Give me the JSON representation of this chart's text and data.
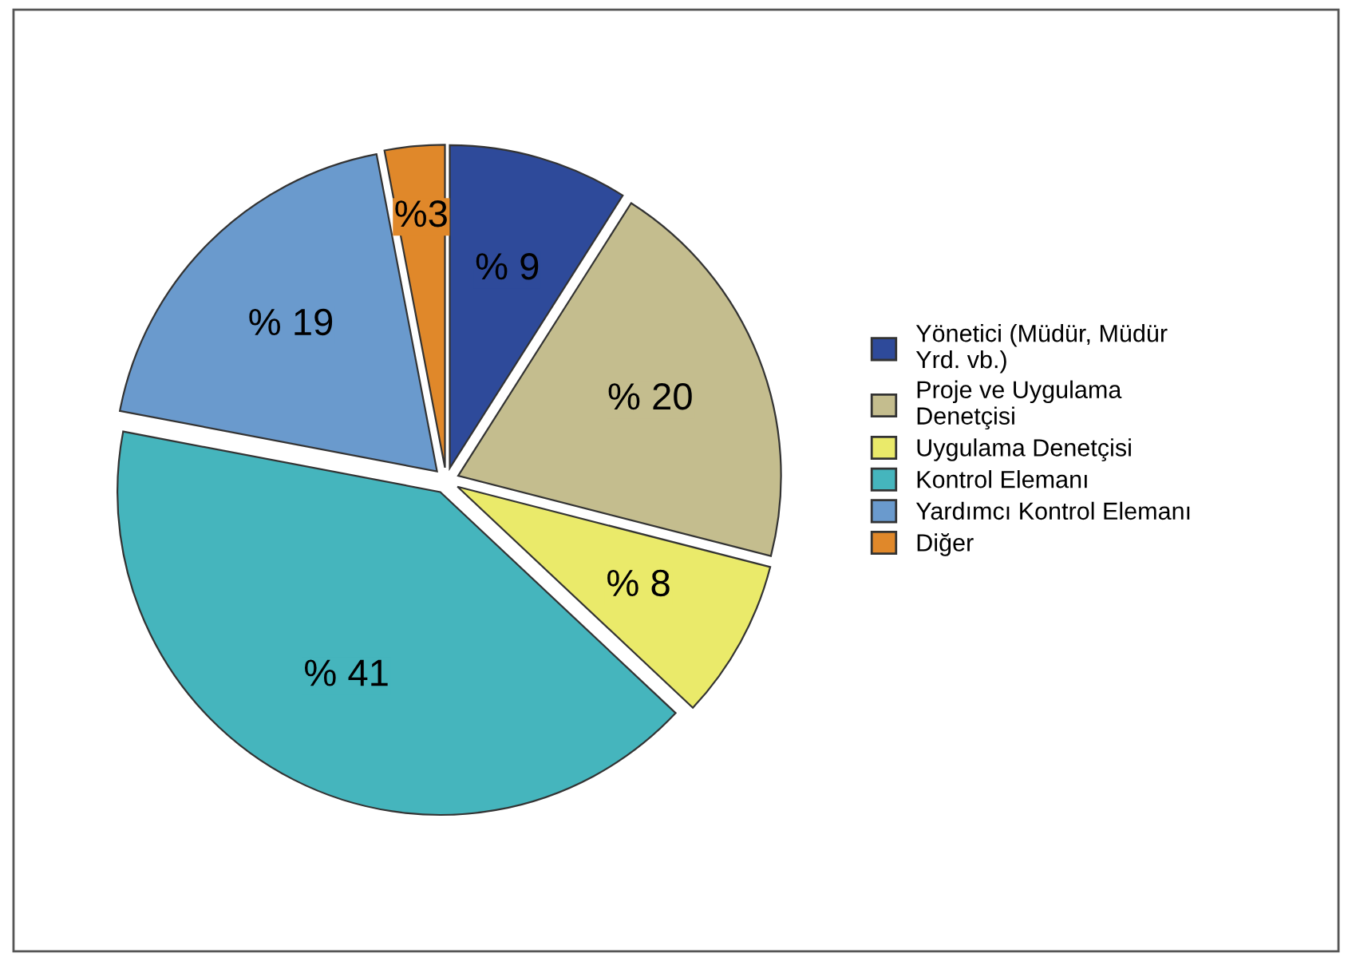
{
  "chart_data": {
    "type": "pie",
    "categories": [
      "Yönetici (Müdür, Müdür\nYrd. vb.)",
      "Proje ve Uygulama\nDenetçisi",
      "Uygulama Denetçisi",
      "Kontrol Elemanı",
      "Yardımcı Kontrol Elemanı",
      "Diğer"
    ],
    "values": [
      9,
      20,
      8,
      41,
      19,
      3
    ],
    "colors": [
      "#2e4a9a",
      "#c4bd8e",
      "#eaea6a",
      "#45b5bd",
      "#6a9acd",
      "#e0882a"
    ],
    "value_labels": [
      "% 9",
      "% 20",
      "% 8",
      "% 41",
      "% 19",
      "%3"
    ],
    "legend": "right"
  }
}
